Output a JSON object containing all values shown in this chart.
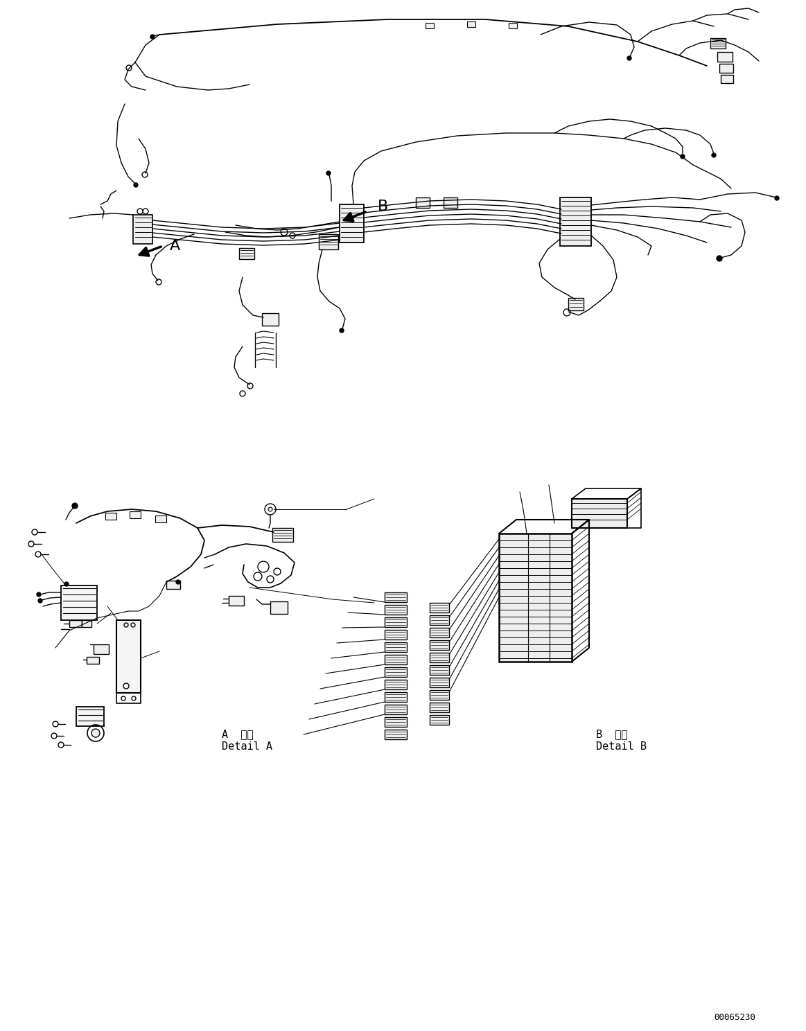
{
  "background_color": "#ffffff",
  "line_color": "#000000",
  "text_color": "#000000",
  "label_A": "A",
  "label_B": "B",
  "detail_A_jp": "A 詳細",
  "detail_A_en": "Detail A",
  "detail_B_jp": "B 詳細",
  "detail_B_en": "Detail B",
  "part_number": "00065230",
  "fig_width": 11.63,
  "fig_height": 14.88,
  "dpi": 100
}
